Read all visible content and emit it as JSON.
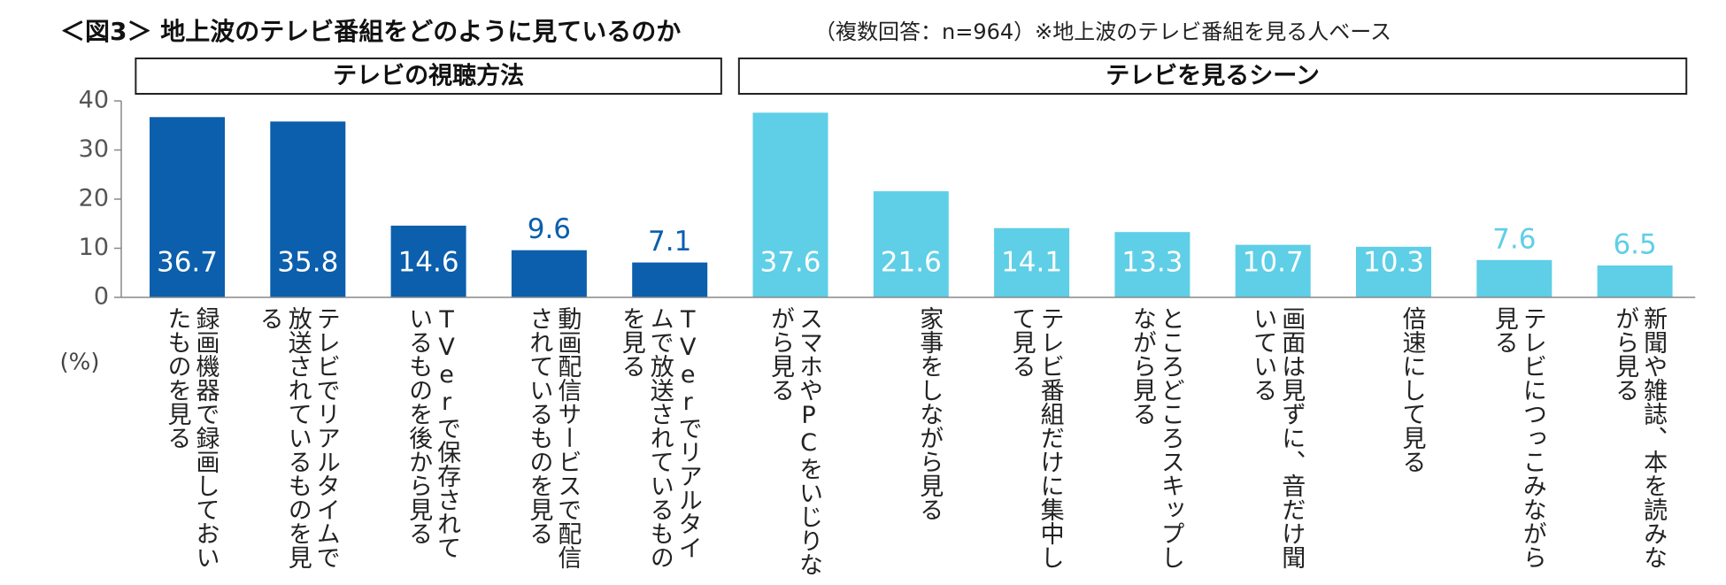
{
  "chart_data": {
    "type": "bar",
    "title": "＜図3＞ 地上波のテレビ番組をどのように見ているのか",
    "subtitle": "（複数回答：n=964）※地上波のテレビ番組を見る人ベース",
    "ylabel": "(%)",
    "ylim": [
      0,
      40
    ],
    "yticks": [
      0,
      10,
      20,
      30,
      40
    ],
    "groups": [
      {
        "name": "テレビの視聴方法",
        "color": "#0b5fad",
        "categories": [
          "録画機器で録画しておいたものを見る",
          "テレビでリアルタイムで放送されているものを見る",
          "TVerで保存されているものを後から見る",
          "動画配信サービスで配信されているものを見る",
          "TVerでリアルタイムで放送されているものを見る"
        ],
        "values": [
          36.7,
          35.8,
          14.6,
          9.6,
          7.1
        ]
      },
      {
        "name": "テレビを見るシーン",
        "color": "#5ecfe6",
        "categories": [
          "スマホやPCをいじりながら見る",
          "家事をしながら見る",
          "テレビ番組だけに集中して見る",
          "ところどころスキップしながら見る",
          "画面は見ずに、音だけ聞いている",
          "倍速にして見る",
          "テレビにつっこみながら見る",
          "新聞や雑誌、本を読みながら見る"
        ],
        "values": [
          37.6,
          21.6,
          14.1,
          13.3,
          10.7,
          10.3,
          7.6,
          6.5
        ]
      }
    ]
  }
}
